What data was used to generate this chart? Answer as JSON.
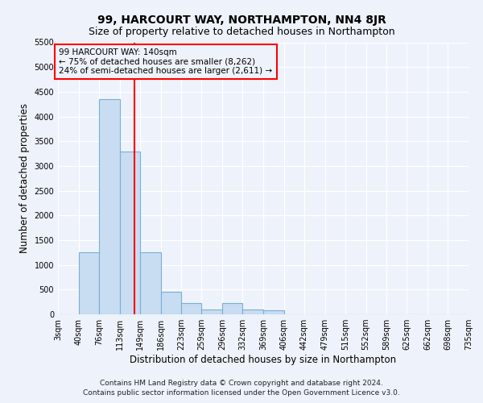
{
  "title": "99, HARCOURT WAY, NORTHAMPTON, NN4 8JR",
  "subtitle": "Size of property relative to detached houses in Northampton",
  "xlabel": "Distribution of detached houses by size in Northampton",
  "ylabel": "Number of detached properties",
  "footer_line1": "Contains HM Land Registry data © Crown copyright and database right 2024.",
  "footer_line2": "Contains public sector information licensed under the Open Government Licence v3.0.",
  "bin_edges": [
    3,
    40,
    76,
    113,
    149,
    186,
    223,
    259,
    296,
    332,
    369,
    406,
    442,
    479,
    515,
    552,
    589,
    625,
    662,
    698,
    735
  ],
  "bar_heights": [
    0,
    1250,
    4350,
    3300,
    1250,
    450,
    225,
    100,
    225,
    100,
    75,
    0,
    0,
    0,
    0,
    0,
    0,
    0,
    0,
    0
  ],
  "bar_color": "#c8ddf2",
  "bar_edgecolor": "#7aafd4",
  "property_size": 140,
  "annotation_line1": "99 HARCOURT WAY: 140sqm",
  "annotation_line2": "← 75% of detached houses are smaller (8,262)",
  "annotation_line3": "24% of semi-detached houses are larger (2,611) →",
  "annotation_box_edgecolor": "red",
  "vline_color": "red",
  "ylim": [
    0,
    5500
  ],
  "yticks": [
    0,
    500,
    1000,
    1500,
    2000,
    2500,
    3000,
    3500,
    4000,
    4500,
    5000,
    5500
  ],
  "background_color": "#eef2fa",
  "grid_color": "white",
  "title_fontsize": 10,
  "subtitle_fontsize": 9,
  "axis_label_fontsize": 8.5,
  "tick_fontsize": 7,
  "annotation_fontsize": 7.5,
  "footer_fontsize": 6.5
}
